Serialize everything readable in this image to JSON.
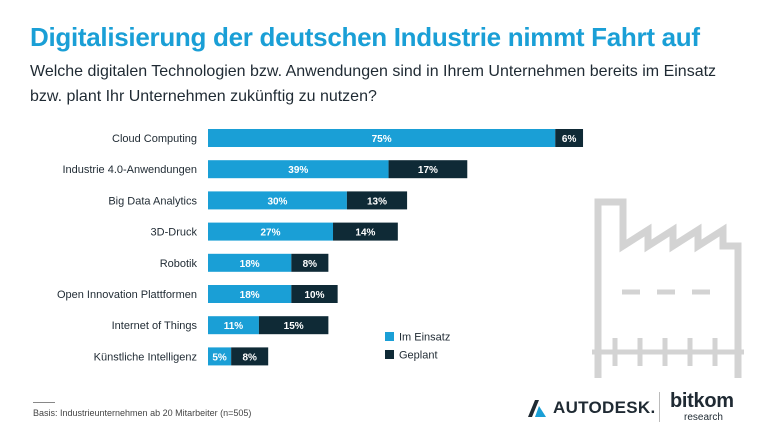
{
  "header": {
    "title": "Digitalisierung der deutschen Industrie nimmt Fahrt auf",
    "subtitle": "Welche digitalen Technologien bzw. Anwendungen sind in Ihrem Unternehmen bereits im Einsatz bzw. plant Ihr Unternehmen zukünftig zu nutzen?"
  },
  "footer": {
    "note": "Basis: Industrieunternehmen ab 20 Mitarbeiter (n=505)",
    "logo_autodesk": "AUTODESK.",
    "logo_bitkom": "bitkom",
    "logo_bitkom_sub": "research"
  },
  "colors": {
    "title": "#1a9fd6",
    "im_einsatz": "#1a9fd6",
    "geplant": "#0f2a36",
    "decor": "#d3d3d3"
  },
  "chart_data": {
    "type": "bar",
    "orientation": "horizontal",
    "stacked": true,
    "value_suffix": "%",
    "legend_position": "bottom-right",
    "categories": [
      "Cloud Computing",
      "Industrie 4.0-Anwendungen",
      "Big Data Analytics",
      "3D-Druck",
      "Robotik",
      "Open Innovation Plattformen",
      "Internet of Things",
      "Künstliche Intelligenz"
    ],
    "series": [
      {
        "name": "Im Einsatz",
        "values": [
          75,
          39,
          30,
          27,
          18,
          18,
          11,
          5
        ]
      },
      {
        "name": "Geplant",
        "values": [
          6,
          17,
          13,
          14,
          8,
          10,
          15,
          8
        ]
      }
    ]
  }
}
